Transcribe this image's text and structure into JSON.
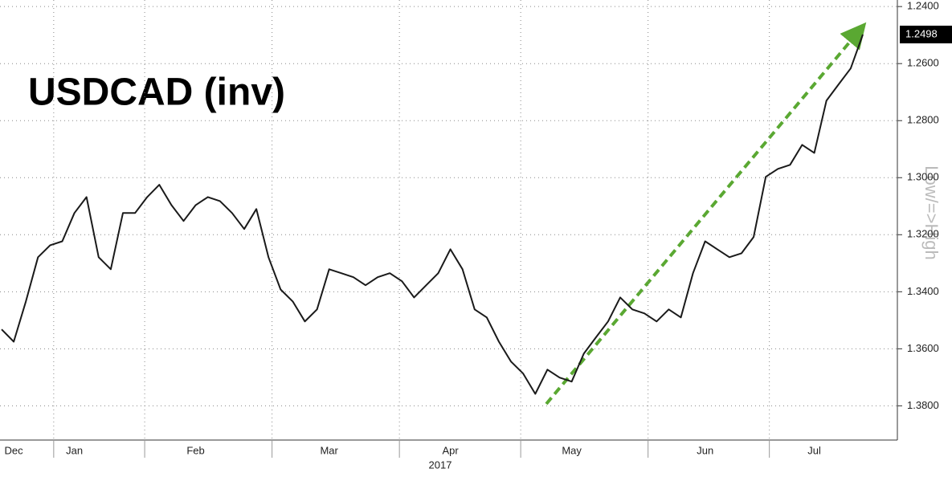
{
  "chart_data": {
    "type": "line",
    "title": "USDCAD (inv)",
    "y_axis_label": "Low/=>High",
    "year_label": "2017",
    "categories": [
      null,
      "Dec",
      null,
      null,
      null,
      null,
      "Jan",
      null,
      null,
      null,
      null,
      null,
      null,
      null,
      null,
      null,
      "Feb",
      null,
      null,
      null,
      null,
      null,
      null,
      null,
      null,
      null,
      null,
      "Mar",
      null,
      null,
      null,
      null,
      null,
      null,
      null,
      null,
      null,
      "Apr",
      null,
      null,
      null,
      null,
      null,
      null,
      null,
      null,
      null,
      "May",
      null,
      null,
      null,
      null,
      null,
      null,
      null,
      null,
      null,
      null,
      "Jun",
      null,
      null,
      null,
      null,
      null,
      null,
      null,
      null,
      "Jul",
      null,
      null,
      null,
      null
    ],
    "series": [
      {
        "name": "USDCAD",
        "color": "#1a1a1a",
        "values": [
          1.3532,
          1.3575,
          1.3434,
          1.3279,
          1.3237,
          1.3223,
          1.3124,
          1.3068,
          1.3279,
          1.3321,
          1.3124,
          1.3124,
          1.3068,
          1.3025,
          1.3096,
          1.3152,
          1.3096,
          1.3068,
          1.3082,
          1.3124,
          1.318,
          1.311,
          1.3279,
          1.3392,
          1.3434,
          1.3504,
          1.3462,
          1.3321,
          1.3335,
          1.3349,
          1.3377,
          1.3349,
          1.3335,
          1.3363,
          1.342,
          1.3377,
          1.3335,
          1.3251,
          1.3321,
          1.3462,
          1.349,
          1.3575,
          1.3645,
          1.3687,
          1.3758,
          1.3673,
          1.3701,
          1.3715,
          1.3617,
          1.356,
          1.3504,
          1.342,
          1.3462,
          1.3476,
          1.3504,
          1.3462,
          1.349,
          1.3335,
          1.3223,
          1.3251,
          1.3279,
          1.3265,
          1.3208,
          1.2997,
          1.2969,
          1.2955,
          1.2885,
          1.2913,
          1.273,
          1.2673,
          1.2617,
          1.2498
        ]
      }
    ],
    "ylim": [
      1.2377,
      1.392
    ],
    "y_inverted": true,
    "yticks": [
      {
        "value": 1.24,
        "label": "1.2400"
      },
      {
        "value": 1.26,
        "label": "1.2600"
      },
      {
        "value": 1.28,
        "label": "1.2800"
      },
      {
        "value": 1.3,
        "label": "1.3000"
      },
      {
        "value": 1.32,
        "label": "1.3200"
      },
      {
        "value": 1.34,
        "label": "1.3400"
      },
      {
        "value": 1.36,
        "label": "1.3600"
      },
      {
        "value": 1.38,
        "label": "1.3800"
      }
    ],
    "grid": true
  }
}
